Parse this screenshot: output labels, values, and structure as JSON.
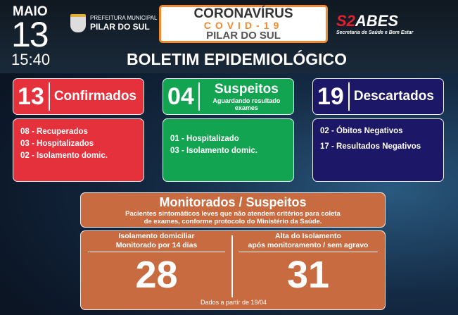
{
  "header": {
    "month": "MAIO",
    "day": "13",
    "time": "15:40",
    "prefeitura_line1": "PREFEITURA MUNICIPAL",
    "prefeitura_line2": "PILAR DO SUL",
    "title": "CORONAVÍRUS",
    "subtitle": "COVID-19",
    "city": "PILAR DO SUL",
    "saabes_prefix": "S2",
    "saabes_name": "ABES",
    "saabes_tagline": "Secretaria de Saúde e Bem Estar",
    "bulletin_title": "BOLETIM EPIDEMIOLÓGICO"
  },
  "cards": [
    {
      "count": "13",
      "label": "Confirmados",
      "items": [
        "08 - Recuperados",
        "03 - Hospitalizados",
        "02 - Isolamento domic."
      ],
      "color": "#e4313b"
    },
    {
      "count": "04",
      "label": "Suspeitos",
      "sublabel": "Aguardando resultado exames",
      "items": [
        "01 - Hospitalizado",
        "03 - Isolamento domic."
      ],
      "color": "#13a452"
    },
    {
      "count": "19",
      "label": "Descartados",
      "items": [
        "02 - Óbitos Negativos",
        "17 - Resultados Negativos"
      ],
      "color": "#1c1766"
    }
  ],
  "monitor": {
    "title": "Monitorados / Suspeitos",
    "desc_line1": "Pacientes sintomáticos leves que não atendem critérios para coleta",
    "desc_line2": "de exames, conforme protocolo do Ministério da Saúde.",
    "left_line1": "Isolamento domiciliar",
    "left_line2": "Monitorado por 14 dias",
    "left_value": "28",
    "right_line1": "Alta do Isolamento",
    "right_line2": "após monitoramento / sem agravo",
    "right_value": "31",
    "footnote": "Dados a partir de 19/04",
    "color": "#c96b40"
  }
}
